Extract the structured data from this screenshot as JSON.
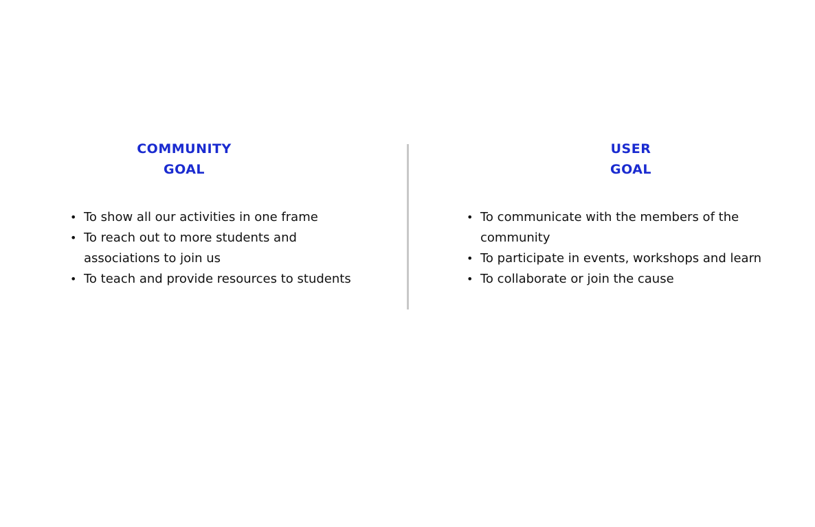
{
  "community": {
    "heading_line1": "COMMUNITY",
    "heading_line2": "GOAL",
    "items": [
      "To show all our activities in one frame",
      "To reach out to more students and associations to join us",
      "To teach and provide resources to students"
    ]
  },
  "user": {
    "heading_line1": "USER",
    "heading_line2": "GOAL",
    "items": [
      "To communicate with the members of the community",
      "To participate in events, workshops and learn",
      "To collaborate or join the cause"
    ]
  },
  "bullet": "•",
  "colors": {
    "heading": "#1a2bd0",
    "text": "#111111",
    "divider": "#c8c8c8"
  }
}
